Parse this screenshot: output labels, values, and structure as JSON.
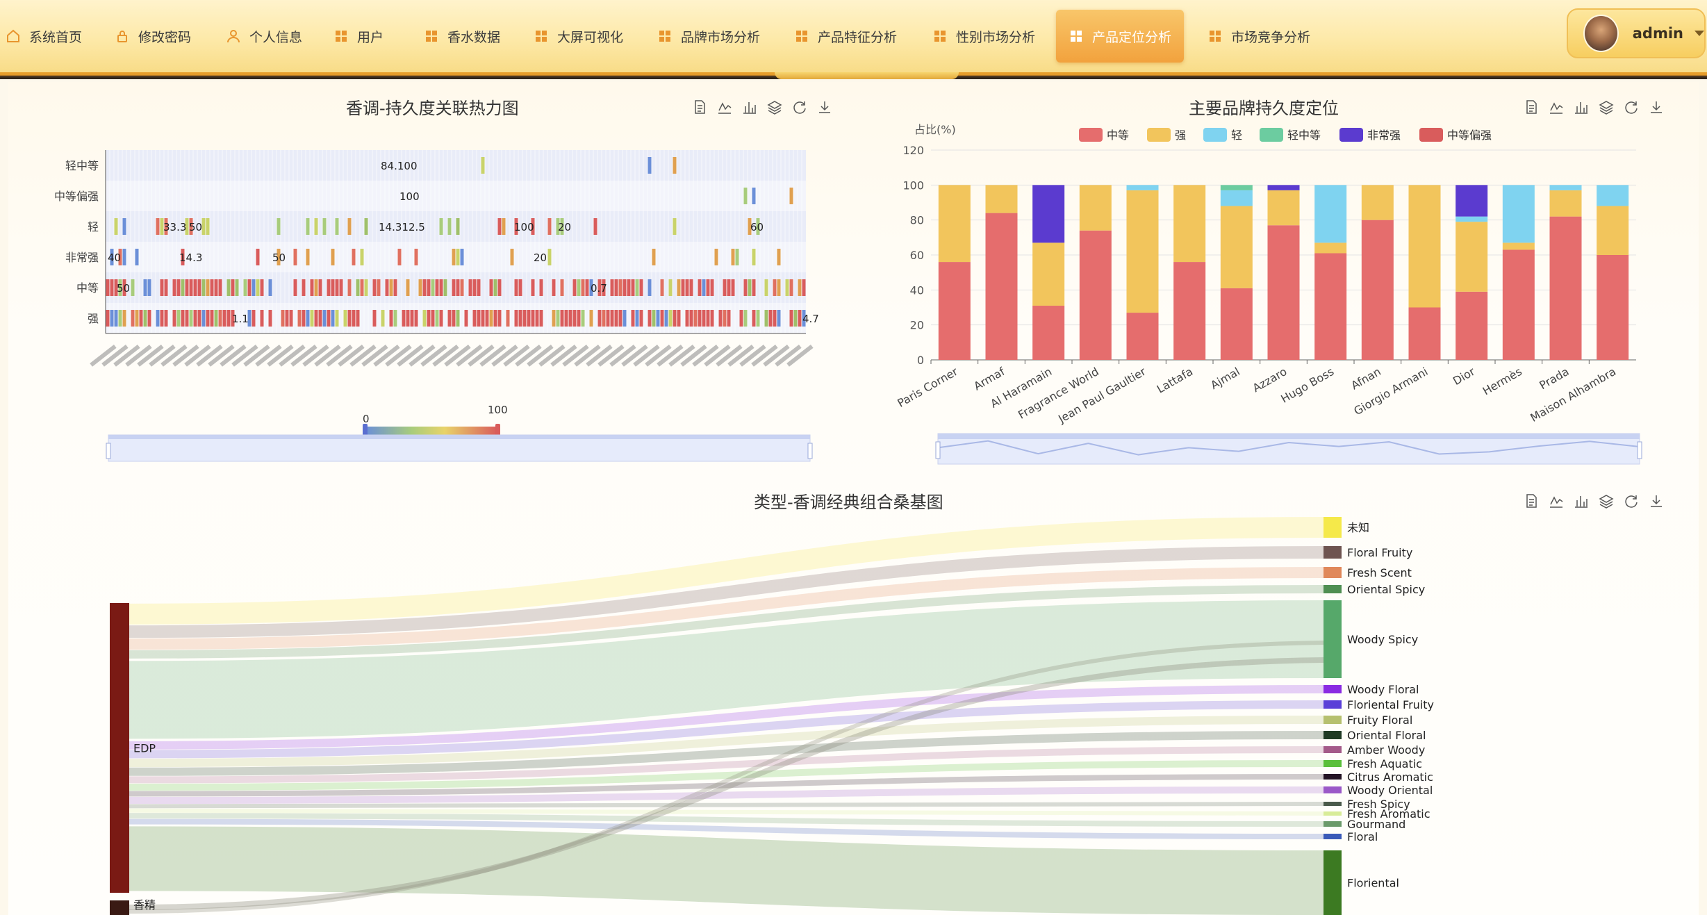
{
  "nav": {
    "items": [
      {
        "label": "系统首页",
        "icon": "home-icon"
      },
      {
        "label": "修改密码",
        "icon": "lock-icon"
      },
      {
        "label": "个人信息",
        "icon": "user-icon"
      },
      {
        "label": "用户",
        "icon": "grid-icon"
      },
      {
        "label": "香水数据",
        "icon": "grid-icon"
      },
      {
        "label": "大屏可视化",
        "icon": "grid-icon"
      },
      {
        "label": "品牌市场分析",
        "icon": "grid-icon"
      },
      {
        "label": "产品特征分析",
        "icon": "grid-icon"
      },
      {
        "label": "性别市场分析",
        "icon": "grid-icon"
      },
      {
        "label": "产品定位分析",
        "icon": "grid-icon",
        "active": true
      },
      {
        "label": "市场竞争分析",
        "icon": "grid-icon"
      }
    ],
    "user": "admin"
  },
  "colors": {
    "accent": "#f2a23d",
    "series": [
      "#e56d6d",
      "#f2c55c",
      "#7fd3f0",
      "#6ccca0",
      "#5b3bcf",
      "#d95c5c"
    ]
  },
  "toolbox": [
    "data-view-icon",
    "line-chart-icon",
    "bar-chart-icon",
    "stack-icon",
    "refresh-icon",
    "download-icon"
  ],
  "heatmap": {
    "title": "香调-持久度关联热力图",
    "y_categories": [
      "强",
      "中等",
      "非常强",
      "轻",
      "中等偏强",
      "轻中等"
    ],
    "visual_map": {
      "min": "0",
      "max": "100"
    },
    "readable_labels": [
      {
        "row": "轻中等",
        "text": "84.100"
      },
      {
        "row": "中等偏强",
        "text": "100"
      },
      {
        "row": "轻",
        "text": "33.3"
      },
      {
        "row": "轻",
        "text": "50"
      },
      {
        "row": "轻",
        "text": "14.312.5"
      },
      {
        "row": "轻",
        "text": "100"
      },
      {
        "row": "轻",
        "text": "20"
      },
      {
        "row": "轻",
        "text": "60"
      },
      {
        "row": "非常强",
        "text": "40"
      },
      {
        "row": "非常强",
        "text": "50"
      },
      {
        "row": "非常强",
        "text": "14.3"
      },
      {
        "row": "非常强",
        "text": "20"
      },
      {
        "row": "中等",
        "text": "50"
      },
      {
        "row": "中等",
        "text": "0.7"
      },
      {
        "row": "强",
        "text": "1.1"
      },
      {
        "row": "强",
        "text": "4.7"
      }
    ]
  },
  "durability": {
    "title": "主要品牌持久度定位",
    "y_axis_name": "占比(%)",
    "legend": [
      "中等",
      "强",
      "轻",
      "轻中等",
      "非常强",
      "中等偏强"
    ]
  },
  "sankey": {
    "title": "类型-香调经典组合桑基图",
    "sources": [
      {
        "name": "EDP",
        "color": "#7a1a14"
      },
      {
        "name": "香精",
        "color": "#3a1a14"
      }
    ],
    "targets": [
      {
        "name": "未知",
        "color": "#f5e94a"
      },
      {
        "name": "Floral Fruity",
        "color": "#6e5450"
      },
      {
        "name": "Fresh Scent",
        "color": "#e0885a"
      },
      {
        "name": "Oriental Spicy",
        "color": "#4f8f52"
      },
      {
        "name": "Woody Spicy",
        "color": "#56a86a"
      },
      {
        "name": "Woody Floral",
        "color": "#8a2be2"
      },
      {
        "name": "Floriental Fruity",
        "color": "#5a3fd8"
      },
      {
        "name": "Fruity Floral",
        "color": "#b6c06e"
      },
      {
        "name": "Oriental Floral",
        "color": "#1f3a24"
      },
      {
        "name": "Amber Woody",
        "color": "#a45a88"
      },
      {
        "name": "Fresh Aquatic",
        "color": "#5abf3a"
      },
      {
        "name": "Citrus Aromatic",
        "color": "#241424"
      },
      {
        "name": "Woody Oriental",
        "color": "#9b59c8"
      },
      {
        "name": "Fresh Spicy",
        "color": "#4a5a4a"
      },
      {
        "name": "Fresh Aromatic",
        "color": "#d8ec98"
      },
      {
        "name": "Gourmand",
        "color": "#6a9a6a"
      },
      {
        "name": "Floral",
        "color": "#3a5ab8"
      },
      {
        "name": "Floriental",
        "color": "#3c7a22"
      }
    ]
  },
  "chart_data": [
    {
      "type": "heatmap",
      "title": "香调-持久度关联热力图",
      "y_categories": [
        "强",
        "中等",
        "非常强",
        "轻",
        "中等偏强",
        "轻中等"
      ],
      "value_range": [
        0,
        100
      ]
    },
    {
      "type": "bar",
      "stacked": true,
      "title": "主要品牌持久度定位",
      "ylabel": "占比(%)",
      "ylim": [
        0,
        120
      ],
      "yticks": [
        0,
        20,
        40,
        60,
        80,
        100,
        120
      ],
      "legend_position": "top",
      "grid": true,
      "categories": [
        "Paris Corner",
        "Armaf",
        "Al Haramain",
        "Fragrance World",
        "Jean Paul Gaultier",
        "Lattafa",
        "Ajmal",
        "Azzaro",
        "Hugo Boss",
        "Afnan",
        "Giorgio Armani",
        "Dior",
        "Hermès",
        "Prada",
        "Maison Alhambra"
      ],
      "series": [
        {
          "name": "中等",
          "values": [
            56,
            84,
            31,
            74,
            27,
            56,
            41,
            77,
            61,
            80,
            30,
            39,
            63,
            82,
            60
          ]
        },
        {
          "name": "强",
          "values": [
            44,
            16,
            36,
            26,
            70,
            44,
            47,
            20,
            6,
            20,
            70,
            40,
            4,
            15,
            28
          ]
        },
        {
          "name": "轻",
          "values": [
            0,
            0,
            0,
            0,
            3,
            0,
            9,
            0,
            33,
            0,
            0,
            3,
            33,
            3,
            12
          ]
        },
        {
          "name": "轻中等",
          "values": [
            0,
            0,
            0,
            0,
            0,
            0,
            3,
            0,
            0,
            0,
            0,
            0,
            0,
            0,
            0
          ]
        },
        {
          "name": "非常强",
          "values": [
            0,
            0,
            33,
            0,
            0,
            0,
            0,
            3,
            0,
            0,
            0,
            18,
            0,
            0,
            0
          ]
        },
        {
          "name": "中等偏强",
          "values": [
            0,
            0,
            0,
            0,
            0,
            0,
            0,
            0,
            0,
            0,
            0,
            0,
            0,
            0,
            0
          ]
        }
      ]
    }
  ]
}
